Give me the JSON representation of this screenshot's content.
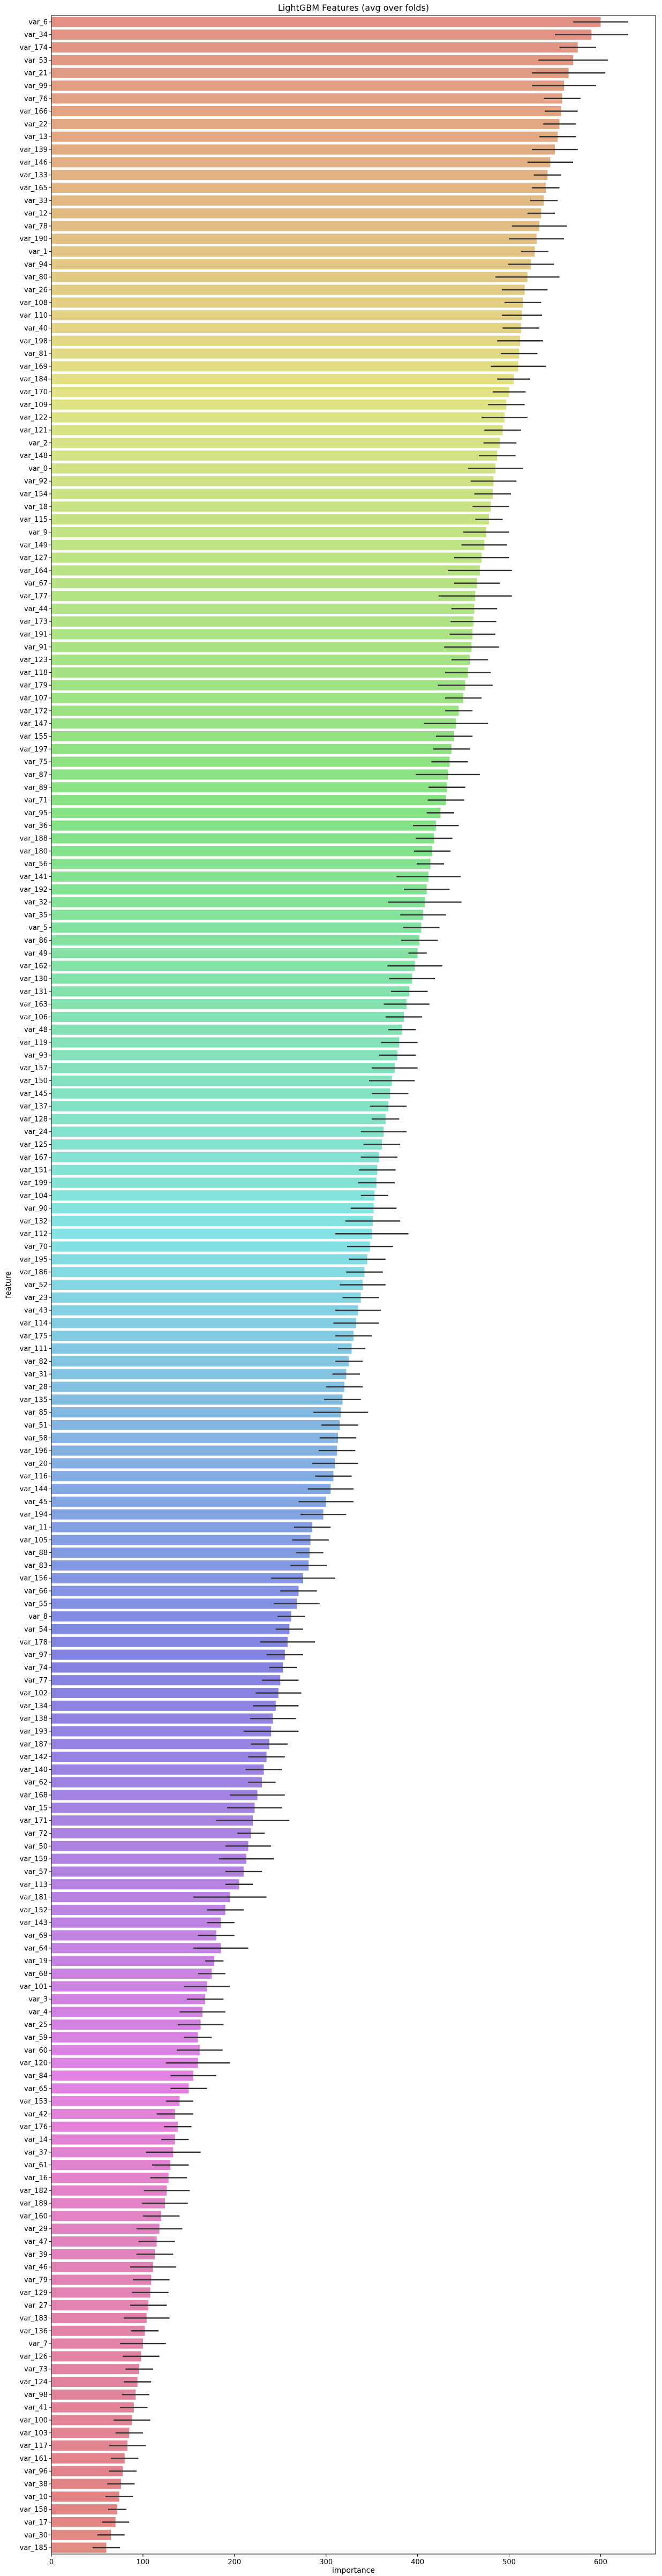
{
  "chart_data": {
    "type": "bar",
    "orientation": "horizontal",
    "title": "LightGBM Features (avg over folds)",
    "xlabel": "importance",
    "ylabel": "feature",
    "xlim": [
      0,
      660
    ],
    "xticks": [
      0,
      100,
      200,
      300,
      400,
      500,
      600
    ],
    "grid": false,
    "error_bars": true,
    "palette": "husl",
    "bars": [
      {
        "feature": "var_6",
        "value": 600,
        "err": 30
      },
      {
        "feature": "var_34",
        "value": 590,
        "err": 40
      },
      {
        "feature": "var_174",
        "value": 575,
        "err": 20
      },
      {
        "feature": "var_53",
        "value": 570,
        "err": 38
      },
      {
        "feature": "var_21",
        "value": 565,
        "err": 40
      },
      {
        "feature": "var_99",
        "value": 560,
        "err": 35
      },
      {
        "feature": "var_76",
        "value": 558,
        "err": 20
      },
      {
        "feature": "var_166",
        "value": 557,
        "err": 18
      },
      {
        "feature": "var_22",
        "value": 555,
        "err": 18
      },
      {
        "feature": "var_13",
        "value": 553,
        "err": 20
      },
      {
        "feature": "var_139",
        "value": 550,
        "err": 25
      },
      {
        "feature": "var_146",
        "value": 545,
        "err": 25
      },
      {
        "feature": "var_133",
        "value": 542,
        "err": 15
      },
      {
        "feature": "var_165",
        "value": 540,
        "err": 15
      },
      {
        "feature": "var_33",
        "value": 538,
        "err": 15
      },
      {
        "feature": "var_12",
        "value": 535,
        "err": 15
      },
      {
        "feature": "var_78",
        "value": 533,
        "err": 30
      },
      {
        "feature": "var_190",
        "value": 530,
        "err": 30
      },
      {
        "feature": "var_1",
        "value": 528,
        "err": 15
      },
      {
        "feature": "var_94",
        "value": 524,
        "err": 25
      },
      {
        "feature": "var_80",
        "value": 520,
        "err": 35
      },
      {
        "feature": "var_26",
        "value": 517,
        "err": 25
      },
      {
        "feature": "var_108",
        "value": 515,
        "err": 20
      },
      {
        "feature": "var_110",
        "value": 514,
        "err": 22
      },
      {
        "feature": "var_40",
        "value": 513,
        "err": 20
      },
      {
        "feature": "var_198",
        "value": 512,
        "err": 25
      },
      {
        "feature": "var_81",
        "value": 511,
        "err": 20
      },
      {
        "feature": "var_169",
        "value": 510,
        "err": 30
      },
      {
        "feature": "var_184",
        "value": 505,
        "err": 18
      },
      {
        "feature": "var_170",
        "value": 500,
        "err": 18
      },
      {
        "feature": "var_109",
        "value": 497,
        "err": 20
      },
      {
        "feature": "var_122",
        "value": 495,
        "err": 25
      },
      {
        "feature": "var_121",
        "value": 493,
        "err": 20
      },
      {
        "feature": "var_2",
        "value": 490,
        "err": 18
      },
      {
        "feature": "var_148",
        "value": 487,
        "err": 20
      },
      {
        "feature": "var_0",
        "value": 485,
        "err": 30
      },
      {
        "feature": "var_92",
        "value": 483,
        "err": 25
      },
      {
        "feature": "var_154",
        "value": 482,
        "err": 20
      },
      {
        "feature": "var_18",
        "value": 480,
        "err": 20
      },
      {
        "feature": "var_115",
        "value": 478,
        "err": 15
      },
      {
        "feature": "var_9",
        "value": 475,
        "err": 25
      },
      {
        "feature": "var_149",
        "value": 473,
        "err": 25
      },
      {
        "feature": "var_127",
        "value": 470,
        "err": 30
      },
      {
        "feature": "var_164",
        "value": 468,
        "err": 35
      },
      {
        "feature": "var_67",
        "value": 465,
        "err": 25
      },
      {
        "feature": "var_177",
        "value": 463,
        "err": 40
      },
      {
        "feature": "var_44",
        "value": 462,
        "err": 25
      },
      {
        "feature": "var_173",
        "value": 461,
        "err": 25
      },
      {
        "feature": "var_191",
        "value": 460,
        "err": 25
      },
      {
        "feature": "var_91",
        "value": 459,
        "err": 30
      },
      {
        "feature": "var_123",
        "value": 457,
        "err": 20
      },
      {
        "feature": "var_118",
        "value": 455,
        "err": 25
      },
      {
        "feature": "var_179",
        "value": 452,
        "err": 30
      },
      {
        "feature": "var_107",
        "value": 450,
        "err": 20
      },
      {
        "feature": "var_172",
        "value": 445,
        "err": 15
      },
      {
        "feature": "var_147",
        "value": 442,
        "err": 35
      },
      {
        "feature": "var_155",
        "value": 440,
        "err": 20
      },
      {
        "feature": "var_197",
        "value": 437,
        "err": 20
      },
      {
        "feature": "var_75",
        "value": 435,
        "err": 20
      },
      {
        "feature": "var_87",
        "value": 433,
        "err": 35
      },
      {
        "feature": "var_89",
        "value": 432,
        "err": 20
      },
      {
        "feature": "var_71",
        "value": 431,
        "err": 20
      },
      {
        "feature": "var_95",
        "value": 425,
        "err": 15
      },
      {
        "feature": "var_36",
        "value": 420,
        "err": 25
      },
      {
        "feature": "var_188",
        "value": 418,
        "err": 20
      },
      {
        "feature": "var_180",
        "value": 416,
        "err": 20
      },
      {
        "feature": "var_56",
        "value": 414,
        "err": 15
      },
      {
        "feature": "var_141",
        "value": 412,
        "err": 35
      },
      {
        "feature": "var_192",
        "value": 410,
        "err": 25
      },
      {
        "feature": "var_32",
        "value": 408,
        "err": 40
      },
      {
        "feature": "var_35",
        "value": 406,
        "err": 25
      },
      {
        "feature": "var_5",
        "value": 404,
        "err": 20
      },
      {
        "feature": "var_86",
        "value": 402,
        "err": 20
      },
      {
        "feature": "var_49",
        "value": 400,
        "err": 10
      },
      {
        "feature": "var_162",
        "value": 397,
        "err": 30
      },
      {
        "feature": "var_130",
        "value": 394,
        "err": 25
      },
      {
        "feature": "var_131",
        "value": 391,
        "err": 20
      },
      {
        "feature": "var_163",
        "value": 388,
        "err": 25
      },
      {
        "feature": "var_106",
        "value": 385,
        "err": 20
      },
      {
        "feature": "var_48",
        "value": 383,
        "err": 15
      },
      {
        "feature": "var_119",
        "value": 380,
        "err": 20
      },
      {
        "feature": "var_93",
        "value": 378,
        "err": 20
      },
      {
        "feature": "var_157",
        "value": 375,
        "err": 25
      },
      {
        "feature": "var_150",
        "value": 372,
        "err": 25
      },
      {
        "feature": "var_145",
        "value": 370,
        "err": 20
      },
      {
        "feature": "var_137",
        "value": 368,
        "err": 20
      },
      {
        "feature": "var_128",
        "value": 365,
        "err": 15
      },
      {
        "feature": "var_24",
        "value": 363,
        "err": 25
      },
      {
        "feature": "var_125",
        "value": 361,
        "err": 20
      },
      {
        "feature": "var_167",
        "value": 358,
        "err": 20
      },
      {
        "feature": "var_151",
        "value": 356,
        "err": 20
      },
      {
        "feature": "var_199",
        "value": 355,
        "err": 20
      },
      {
        "feature": "var_104",
        "value": 353,
        "err": 15
      },
      {
        "feature": "var_90",
        "value": 352,
        "err": 25
      },
      {
        "feature": "var_132",
        "value": 351,
        "err": 30
      },
      {
        "feature": "var_112",
        "value": 350,
        "err": 40
      },
      {
        "feature": "var_70",
        "value": 348,
        "err": 25
      },
      {
        "feature": "var_195",
        "value": 345,
        "err": 20
      },
      {
        "feature": "var_186",
        "value": 342,
        "err": 20
      },
      {
        "feature": "var_52",
        "value": 340,
        "err": 25
      },
      {
        "feature": "var_23",
        "value": 338,
        "err": 20
      },
      {
        "feature": "var_43",
        "value": 335,
        "err": 25
      },
      {
        "feature": "var_114",
        "value": 333,
        "err": 25
      },
      {
        "feature": "var_175",
        "value": 330,
        "err": 20
      },
      {
        "feature": "var_111",
        "value": 328,
        "err": 15
      },
      {
        "feature": "var_82",
        "value": 325,
        "err": 15
      },
      {
        "feature": "var_31",
        "value": 322,
        "err": 15
      },
      {
        "feature": "var_28",
        "value": 320,
        "err": 20
      },
      {
        "feature": "var_135",
        "value": 318,
        "err": 20
      },
      {
        "feature": "var_85",
        "value": 316,
        "err": 30
      },
      {
        "feature": "var_51",
        "value": 315,
        "err": 20
      },
      {
        "feature": "var_58",
        "value": 313,
        "err": 20
      },
      {
        "feature": "var_196",
        "value": 312,
        "err": 20
      },
      {
        "feature": "var_20",
        "value": 310,
        "err": 25
      },
      {
        "feature": "var_116",
        "value": 308,
        "err": 20
      },
      {
        "feature": "var_144",
        "value": 305,
        "err": 25
      },
      {
        "feature": "var_45",
        "value": 300,
        "err": 30
      },
      {
        "feature": "var_194",
        "value": 297,
        "err": 25
      },
      {
        "feature": "var_11",
        "value": 285,
        "err": 20
      },
      {
        "feature": "var_105",
        "value": 283,
        "err": 20
      },
      {
        "feature": "var_88",
        "value": 282,
        "err": 15
      },
      {
        "feature": "var_83",
        "value": 281,
        "err": 20
      },
      {
        "feature": "var_156",
        "value": 275,
        "err": 35
      },
      {
        "feature": "var_66",
        "value": 270,
        "err": 20
      },
      {
        "feature": "var_55",
        "value": 268,
        "err": 25
      },
      {
        "feature": "var_8",
        "value": 262,
        "err": 15
      },
      {
        "feature": "var_54",
        "value": 260,
        "err": 15
      },
      {
        "feature": "var_178",
        "value": 258,
        "err": 30
      },
      {
        "feature": "var_97",
        "value": 255,
        "err": 20
      },
      {
        "feature": "var_74",
        "value": 253,
        "err": 15
      },
      {
        "feature": "var_77",
        "value": 250,
        "err": 20
      },
      {
        "feature": "var_102",
        "value": 248,
        "err": 25
      },
      {
        "feature": "var_134",
        "value": 245,
        "err": 25
      },
      {
        "feature": "var_138",
        "value": 242,
        "err": 25
      },
      {
        "feature": "var_193",
        "value": 240,
        "err": 30
      },
      {
        "feature": "var_187",
        "value": 238,
        "err": 20
      },
      {
        "feature": "var_142",
        "value": 235,
        "err": 20
      },
      {
        "feature": "var_140",
        "value": 232,
        "err": 20
      },
      {
        "feature": "var_62",
        "value": 230,
        "err": 15
      },
      {
        "feature": "var_168",
        "value": 225,
        "err": 30
      },
      {
        "feature": "var_15",
        "value": 222,
        "err": 30
      },
      {
        "feature": "var_171",
        "value": 220,
        "err": 40
      },
      {
        "feature": "var_72",
        "value": 218,
        "err": 15
      },
      {
        "feature": "var_50",
        "value": 215,
        "err": 25
      },
      {
        "feature": "var_159",
        "value": 213,
        "err": 30
      },
      {
        "feature": "var_57",
        "value": 210,
        "err": 20
      },
      {
        "feature": "var_113",
        "value": 205,
        "err": 15
      },
      {
        "feature": "var_181",
        "value": 195,
        "err": 40
      },
      {
        "feature": "var_152",
        "value": 190,
        "err": 20
      },
      {
        "feature": "var_143",
        "value": 185,
        "err": 15
      },
      {
        "feature": "var_69",
        "value": 180,
        "err": 20
      },
      {
        "feature": "var_64",
        "value": 185,
        "err": 30
      },
      {
        "feature": "var_19",
        "value": 178,
        "err": 10
      },
      {
        "feature": "var_68",
        "value": 175,
        "err": 15
      },
      {
        "feature": "var_101",
        "value": 170,
        "err": 25
      },
      {
        "feature": "var_3",
        "value": 168,
        "err": 20
      },
      {
        "feature": "var_4",
        "value": 165,
        "err": 25
      },
      {
        "feature": "var_25",
        "value": 163,
        "err": 25
      },
      {
        "feature": "var_59",
        "value": 160,
        "err": 15
      },
      {
        "feature": "var_60",
        "value": 162,
        "err": 25
      },
      {
        "feature": "var_120",
        "value": 160,
        "err": 35
      },
      {
        "feature": "var_84",
        "value": 155,
        "err": 25
      },
      {
        "feature": "var_65",
        "value": 150,
        "err": 20
      },
      {
        "feature": "var_153",
        "value": 140,
        "err": 15
      },
      {
        "feature": "var_42",
        "value": 135,
        "err": 20
      },
      {
        "feature": "var_176",
        "value": 138,
        "err": 15
      },
      {
        "feature": "var_14",
        "value": 135,
        "err": 15
      },
      {
        "feature": "var_37",
        "value": 133,
        "err": 30
      },
      {
        "feature": "var_61",
        "value": 130,
        "err": 20
      },
      {
        "feature": "var_16",
        "value": 128,
        "err": 20
      },
      {
        "feature": "var_182",
        "value": 126,
        "err": 25
      },
      {
        "feature": "var_189",
        "value": 124,
        "err": 25
      },
      {
        "feature": "var_160",
        "value": 120,
        "err": 20
      },
      {
        "feature": "var_29",
        "value": 118,
        "err": 25
      },
      {
        "feature": "var_47",
        "value": 115,
        "err": 20
      },
      {
        "feature": "var_39",
        "value": 113,
        "err": 20
      },
      {
        "feature": "var_46",
        "value": 111,
        "err": 25
      },
      {
        "feature": "var_79",
        "value": 109,
        "err": 20
      },
      {
        "feature": "var_129",
        "value": 108,
        "err": 20
      },
      {
        "feature": "var_27",
        "value": 106,
        "err": 20
      },
      {
        "feature": "var_183",
        "value": 104,
        "err": 25
      },
      {
        "feature": "var_136",
        "value": 102,
        "err": 15
      },
      {
        "feature": "var_7",
        "value": 100,
        "err": 25
      },
      {
        "feature": "var_126",
        "value": 98,
        "err": 20
      },
      {
        "feature": "var_73",
        "value": 96,
        "err": 15
      },
      {
        "feature": "var_124",
        "value": 94,
        "err": 15
      },
      {
        "feature": "var_98",
        "value": 92,
        "err": 15
      },
      {
        "feature": "var_41",
        "value": 90,
        "err": 15
      },
      {
        "feature": "var_100",
        "value": 88,
        "err": 20
      },
      {
        "feature": "var_103",
        "value": 85,
        "err": 15
      },
      {
        "feature": "var_117",
        "value": 83,
        "err": 20
      },
      {
        "feature": "var_161",
        "value": 80,
        "err": 15
      },
      {
        "feature": "var_96",
        "value": 78,
        "err": 15
      },
      {
        "feature": "var_38",
        "value": 76,
        "err": 15
      },
      {
        "feature": "var_10",
        "value": 74,
        "err": 15
      },
      {
        "feature": "var_158",
        "value": 72,
        "err": 10
      },
      {
        "feature": "var_17",
        "value": 70,
        "err": 15
      },
      {
        "feature": "var_30",
        "value": 65,
        "err": 15
      },
      {
        "feature": "var_185",
        "value": 60,
        "err": 15
      }
    ]
  }
}
